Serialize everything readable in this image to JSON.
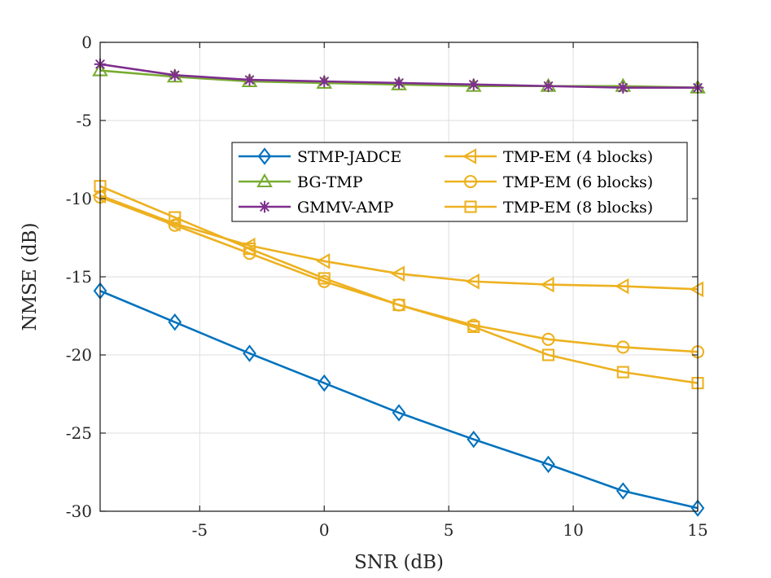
{
  "chart_data": {
    "type": "line",
    "title": "",
    "xlabel": "SNR (dB)",
    "ylabel": "NMSE (dB)",
    "xlim": [
      -9,
      15
    ],
    "ylim": [
      -30,
      0
    ],
    "x_ticks": [
      -5,
      0,
      5,
      10,
      15
    ],
    "y_ticks": [
      0,
      -5,
      -10,
      -15,
      -20,
      -25,
      -30
    ],
    "grid": true,
    "legend_position": "upper-right, inside axes",
    "x": [
      -9,
      -6,
      -3,
      0,
      3,
      6,
      9,
      12,
      15
    ],
    "series": [
      {
        "name": "STMP-JADCE",
        "color": "#0072BD",
        "marker": "diamond",
        "values": [
          -15.9,
          -17.9,
          -19.9,
          -21.8,
          -23.7,
          -25.4,
          -27.0,
          -28.7,
          -29.8
        ]
      },
      {
        "name": "BG-TMP",
        "color": "#77AC30",
        "marker": "triangle-up",
        "values": [
          -1.8,
          -2.2,
          -2.5,
          -2.6,
          -2.7,
          -2.8,
          -2.8,
          -2.8,
          -2.9
        ]
      },
      {
        "name": "GMMV-AMP",
        "color": "#7E2F8E",
        "marker": "asterisk",
        "values": [
          -1.4,
          -2.1,
          -2.4,
          -2.5,
          -2.6,
          -2.7,
          -2.8,
          -2.9,
          -2.9
        ]
      },
      {
        "name": "TMP-EM (4 blocks)",
        "color": "#EDB120",
        "marker": "triangle-left",
        "values": [
          -9.8,
          -11.6,
          -13.0,
          -14.0,
          -14.8,
          -15.3,
          -15.5,
          -15.6,
          -15.8
        ]
      },
      {
        "name": "TMP-EM (6 blocks)",
        "color": "#EDB120",
        "marker": "circle",
        "values": [
          -9.9,
          -11.7,
          -13.5,
          -15.3,
          -16.8,
          -18.1,
          -19.0,
          -19.5,
          -19.8
        ]
      },
      {
        "name": "TMP-EM (8 blocks)",
        "color": "#EDB120",
        "marker": "square",
        "values": [
          -9.2,
          -11.2,
          -13.2,
          -15.1,
          -16.8,
          -18.2,
          -20.0,
          -21.1,
          -21.8
        ]
      }
    ]
  }
}
